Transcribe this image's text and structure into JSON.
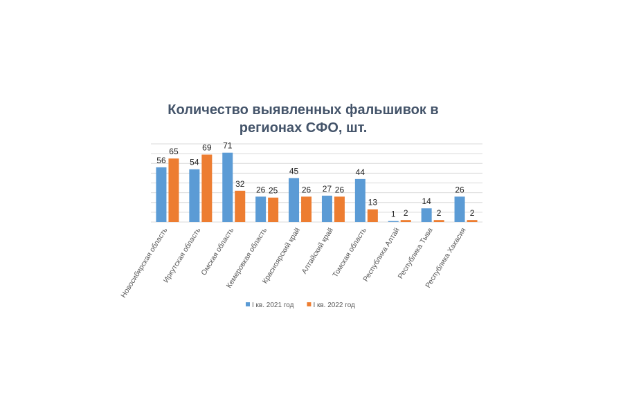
{
  "chart_data": {
    "type": "bar",
    "title": "Количество выявленных фальшивок в регионах СФО, шт.",
    "categories": [
      "Новосибирская область",
      "Иркутская область",
      "Омская область",
      "Кемеровкая область",
      "Красноярский край",
      "Алтайский край",
      "Томская область",
      "Республика Алтай",
      "Республика Тыва",
      "Республика Хакасия"
    ],
    "series": [
      {
        "name": "I кв. 2021 год",
        "color": "#5b9bd5",
        "values": [
          56,
          54,
          71,
          26,
          45,
          27,
          44,
          1,
          14,
          26
        ]
      },
      {
        "name": "I кв. 2022 год",
        "color": "#ed7d31",
        "values": [
          65,
          69,
          32,
          25,
          26,
          26,
          13,
          2,
          2,
          2
        ]
      }
    ],
    "ylim": [
      0,
      80
    ],
    "yticks": [
      0,
      10,
      20,
      30,
      40,
      50,
      60,
      70,
      80
    ],
    "grid": true
  }
}
